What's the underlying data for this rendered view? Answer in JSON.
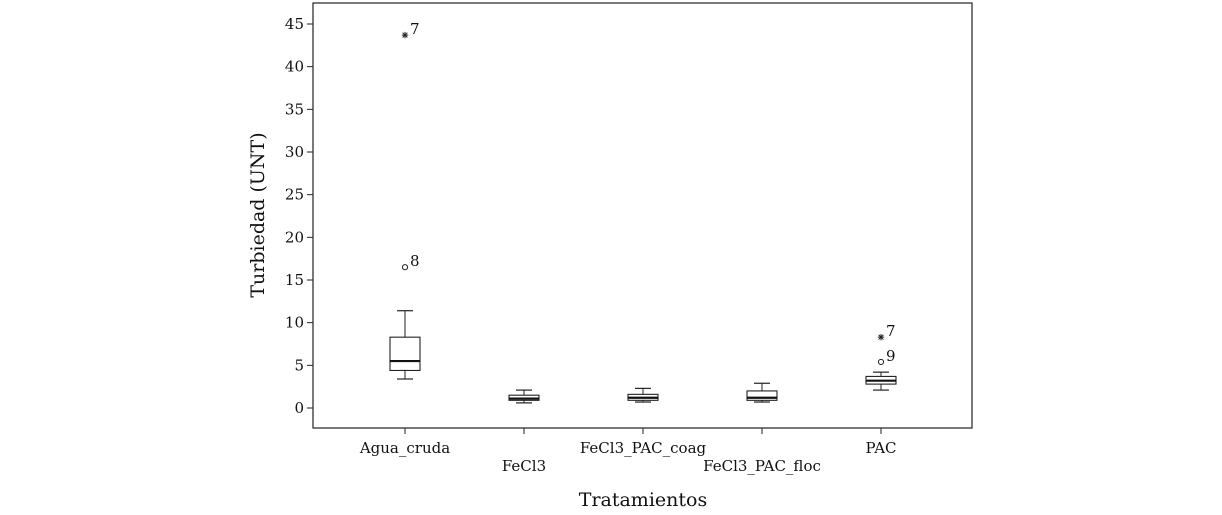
{
  "chart_data": {
    "type": "box",
    "xlabel": "Tratamientos",
    "ylabel": "Turbiedad (UNT)",
    "ylim": [
      -2.5,
      47
    ],
    "yticks": [
      0,
      5,
      10,
      15,
      20,
      25,
      30,
      35,
      40,
      45
    ],
    "grid": false,
    "categories": [
      "Agua_cruda",
      "FeCl3",
      "FeCl3_PAC_coag",
      "FeCl3_PAC_floc",
      "PAC"
    ],
    "boxes": [
      {
        "category": "Agua_cruda",
        "whisker_low": 3.4,
        "q1": 4.4,
        "median": 5.5,
        "q3": 8.3,
        "whisker_high": 11.4,
        "outliers": [
          {
            "value": 16.5,
            "label": "8",
            "kind": "circle"
          },
          {
            "value": 43.7,
            "label": "7",
            "kind": "star"
          }
        ]
      },
      {
        "category": "FeCl3",
        "whisker_low": 0.6,
        "q1": 0.9,
        "median": 1.1,
        "q3": 1.5,
        "whisker_high": 2.1,
        "outliers": []
      },
      {
        "category": "FeCl3_PAC_coag",
        "whisker_low": 0.7,
        "q1": 0.9,
        "median": 1.2,
        "q3": 1.6,
        "whisker_high": 2.3,
        "outliers": []
      },
      {
        "category": "FeCl3_PAC_floc",
        "whisker_low": 0.7,
        "q1": 0.9,
        "median": 1.2,
        "q3": 2.0,
        "whisker_high": 2.9,
        "outliers": []
      },
      {
        "category": "PAC",
        "whisker_low": 2.1,
        "q1": 2.8,
        "median": 3.2,
        "q3": 3.7,
        "whisker_high": 4.2,
        "outliers": [
          {
            "value": 5.4,
            "label": "9",
            "kind": "circle"
          },
          {
            "value": 8.3,
            "label": "7",
            "kind": "star"
          }
        ]
      }
    ]
  }
}
